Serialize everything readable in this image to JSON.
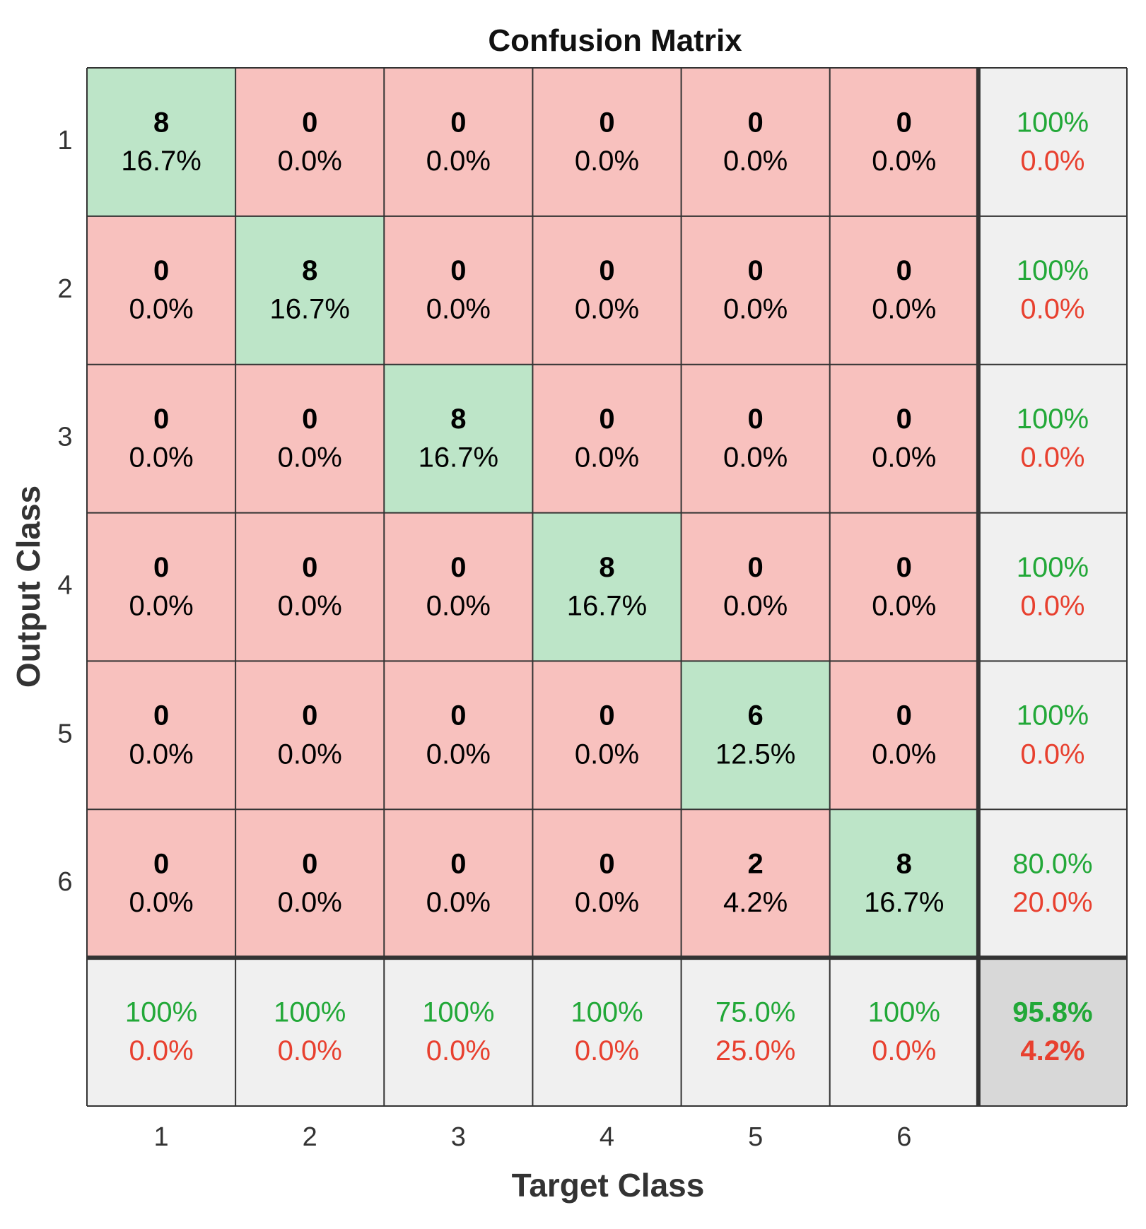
{
  "chart_data": {
    "type": "heatmap",
    "title": "Confusion Matrix",
    "xlabel": "Target Class",
    "ylabel": "Output Class",
    "x_tick_labels": [
      "1",
      "2",
      "3",
      "4",
      "5",
      "6"
    ],
    "y_tick_labels": [
      "1",
      "2",
      "3",
      "4",
      "5",
      "6"
    ],
    "matrix": [
      {
        "counts": [
          8,
          0,
          0,
          0,
          0,
          0
        ],
        "percents": [
          "16.7%",
          "0.0%",
          "0.0%",
          "0.0%",
          "0.0%",
          "0.0%"
        ]
      },
      {
        "counts": [
          0,
          8,
          0,
          0,
          0,
          0
        ],
        "percents": [
          "0.0%",
          "16.7%",
          "0.0%",
          "0.0%",
          "0.0%",
          "0.0%"
        ]
      },
      {
        "counts": [
          0,
          0,
          8,
          0,
          0,
          0
        ],
        "percents": [
          "0.0%",
          "0.0%",
          "16.7%",
          "0.0%",
          "0.0%",
          "0.0%"
        ]
      },
      {
        "counts": [
          0,
          0,
          0,
          8,
          0,
          0
        ],
        "percents": [
          "0.0%",
          "0.0%",
          "0.0%",
          "16.7%",
          "0.0%",
          "0.0%"
        ]
      },
      {
        "counts": [
          0,
          0,
          0,
          0,
          6,
          0
        ],
        "percents": [
          "0.0%",
          "0.0%",
          "0.0%",
          "0.0%",
          "12.5%",
          "0.0%"
        ]
      },
      {
        "counts": [
          0,
          0,
          0,
          0,
          2,
          8
        ],
        "percents": [
          "0.0%",
          "0.0%",
          "0.0%",
          "0.0%",
          "4.2%",
          "16.7%"
        ]
      }
    ],
    "row_summary": [
      {
        "correct": "100%",
        "incorrect": "0.0%"
      },
      {
        "correct": "100%",
        "incorrect": "0.0%"
      },
      {
        "correct": "100%",
        "incorrect": "0.0%"
      },
      {
        "correct": "100%",
        "incorrect": "0.0%"
      },
      {
        "correct": "100%",
        "incorrect": "0.0%"
      },
      {
        "correct": "80.0%",
        "incorrect": "20.0%"
      }
    ],
    "column_summary": [
      {
        "correct": "100%",
        "incorrect": "0.0%"
      },
      {
        "correct": "100%",
        "incorrect": "0.0%"
      },
      {
        "correct": "100%",
        "incorrect": "0.0%"
      },
      {
        "correct": "100%",
        "incorrect": "0.0%"
      },
      {
        "correct": "75.0%",
        "incorrect": "25.0%"
      },
      {
        "correct": "100%",
        "incorrect": "0.0%"
      }
    ],
    "overall": {
      "correct": "95.8%",
      "incorrect": "4.2%"
    }
  },
  "colors": {
    "diagonal_fill": "#bde5c8",
    "off_diagonal_fill": "#f8c1be",
    "summary_fill": "#f0f0f0",
    "overall_fill": "#d8d8d8",
    "correct_text": "#22a838",
    "incorrect_text": "#e8402f",
    "cell_text": "#000000",
    "axis_text": "#333333",
    "grid_line": "#333333"
  }
}
